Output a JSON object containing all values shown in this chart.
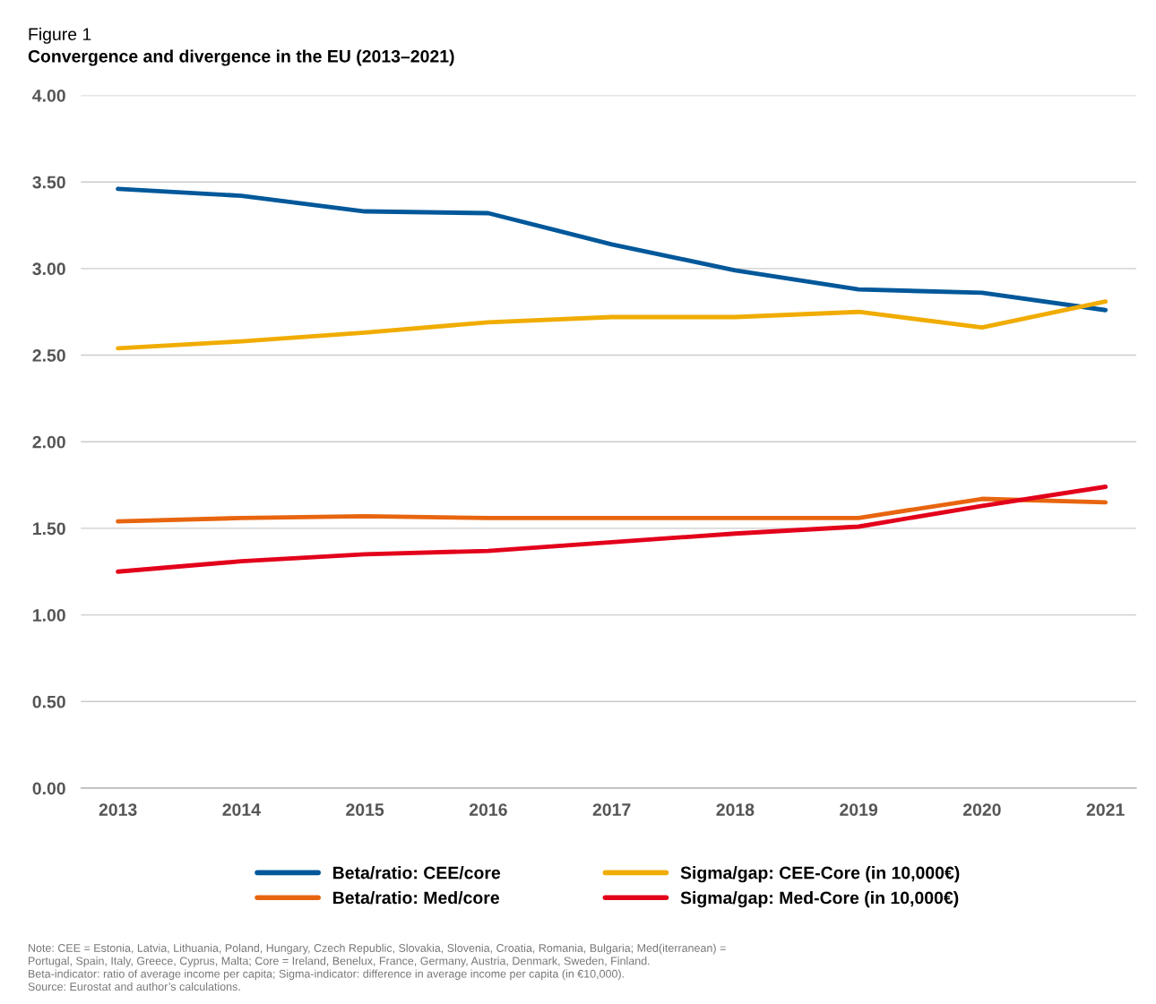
{
  "chart_data": {
    "type": "line",
    "title": "Figure 1",
    "subtitle": "Convergence and divergence in the EU (2013–2021)",
    "categories": [
      "2013",
      "2014",
      "2015",
      "2016",
      "2017",
      "2018",
      "2019",
      "2020",
      "2021"
    ],
    "series": [
      {
        "name": "Beta/ratio: CEE/core",
        "color": "#00589a",
        "values": [
          3.46,
          3.42,
          3.33,
          3.32,
          3.14,
          2.99,
          2.88,
          2.86,
          2.76
        ]
      },
      {
        "name": "Beta/ratio: Med/core",
        "color": "#e8650f",
        "values": [
          1.54,
          1.56,
          1.57,
          1.56,
          1.56,
          1.56,
          1.56,
          1.67,
          1.65
        ]
      },
      {
        "name": "Sigma/gap: CEE-Core (in 10,000€)",
        "color": "#f0ac00",
        "values": [
          2.54,
          2.58,
          2.63,
          2.69,
          2.72,
          2.72,
          2.75,
          2.66,
          2.81
        ]
      },
      {
        "name": "Sigma/gap: Med-Core (in 10,000€)",
        "color": "#e3001b",
        "values": [
          1.25,
          1.31,
          1.35,
          1.37,
          1.42,
          1.47,
          1.51,
          1.63,
          1.74
        ]
      }
    ],
    "ylim": [
      0,
      4
    ],
    "yticks": [
      {
        "value": 0,
        "label": "0.00"
      },
      {
        "value": 0.5,
        "label": "0.50"
      },
      {
        "value": 1,
        "label": "1.00"
      },
      {
        "value": 1.5,
        "label": "1.50"
      },
      {
        "value": 2,
        "label": "2.00"
      },
      {
        "value": 2.5,
        "label": "2.50"
      },
      {
        "value": 3,
        "label": "3.00"
      },
      {
        "value": 3.5,
        "label": "3.50"
      },
      {
        "value": 4,
        "label": "4.00"
      }
    ],
    "grid": "y",
    "legend": "bottom",
    "marker": "none",
    "line_style": "solid",
    "annotations": [
      "Note: CEE = Estonia, Latvia, Lithuania, Poland, Hungary, Czech Republic, Slovakia, Slovenia, Croatia, Romania, Bulgaria; Med(iterranean) =\nPortugal, Spain, Italy, Greece, Cyprus, Malta; Core = Ireland, Benelux, France, Germany, Austria, Denmark, Sweden, Finland.\nBeta-indicator: ratio of average income per capita; Sigma-indicator: difference in average income per capita (in €10,000).\nSource: Eurostat and author’s calculations."
    ]
  }
}
